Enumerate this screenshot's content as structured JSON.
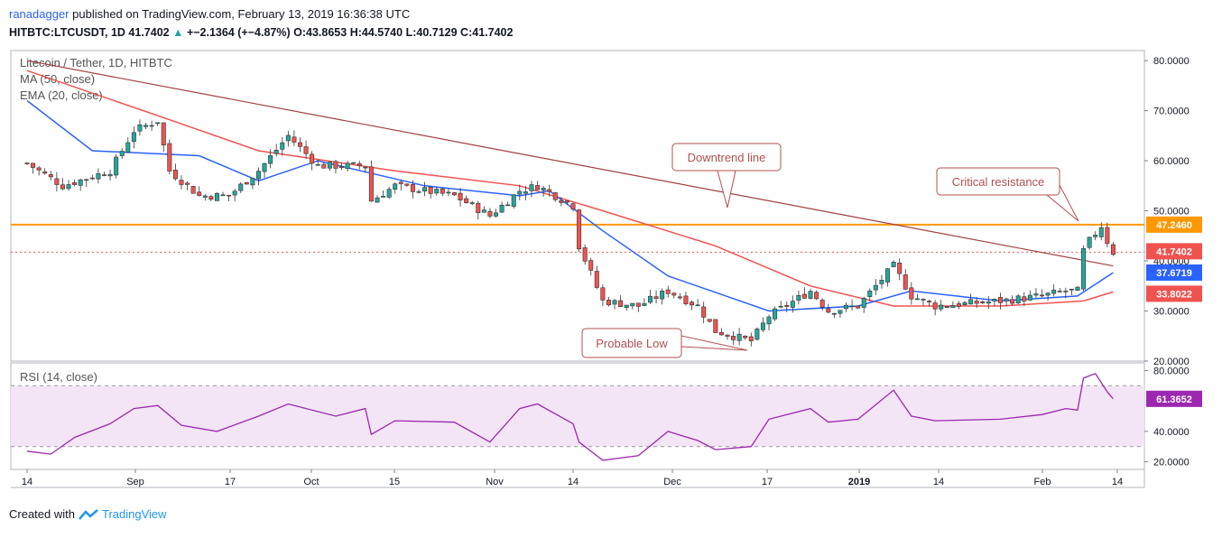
{
  "header": {
    "author": "ranadagger",
    "published": "published on TradingView.com, February 13, 2019 16:36:38 UTC",
    "symbol": "HITBTC:LTCUSDT, 1D",
    "last": "41.7402",
    "change": "+−2.1364 (+−4.87%)",
    "o_label": "O:",
    "o": "43.8653",
    "h_label": "H:",
    "h": "44.5740",
    "l_label": "L:",
    "l": "40.7129",
    "c_label": "C:",
    "c": "41.7402"
  },
  "legend": [
    "Litecoin / Tether, 1D, HITBTC",
    "MA (50, close)",
    "EMA (20, close)"
  ],
  "rsi_legend": "RSI (14, close)",
  "price_axis": [
    "80.0000",
    "70.0000",
    "60.0000",
    "50.0000",
    "40.0000",
    "30.0000",
    "20.0000"
  ],
  "rsi_axis": [
    "80.0000",
    "40.0000",
    "20.0000"
  ],
  "price_tags": [
    {
      "label": "47.2460",
      "value": 47.246,
      "color": "#ff9800"
    },
    {
      "label": "41.7402",
      "value": 41.7402,
      "color": "#ef5350"
    },
    {
      "label": "37.6719",
      "value": 37.6719,
      "color": "#2962ff"
    },
    {
      "label": "33.8022",
      "value": 33.8022,
      "color": "#ef5350"
    }
  ],
  "rsi_tag": {
    "label": "61.3652",
    "value": 61.3652,
    "color": "#9c27b0"
  },
  "time_axis": [
    "14",
    "Sep",
    "17",
    "Oct",
    "15",
    "Nov",
    "14",
    "Dec",
    "17",
    "2019",
    "14",
    "Feb",
    "14"
  ],
  "annotations": {
    "downtrend": "Downtrend line",
    "resistance": "Critical resistance",
    "low": "Probable Low"
  },
  "footer": {
    "created": "Created with",
    "brand": "TradingView"
  },
  "colors": {
    "up": "#26a69a",
    "down": "#ef5350",
    "ma": "#ef5350",
    "ema": "#2962ff",
    "resistance": "#ff9800",
    "trendline": "#a04040",
    "rsi": "#9c27b0",
    "rsi_band": "#f3e5f5",
    "annotation_border": "#b05050",
    "annotation_text": "#b05050"
  },
  "chart_data": {
    "type": "candlestick",
    "title": "Litecoin / Tether, 1D, HITBTC",
    "symbol": "HITBTC:LTCUSDT",
    "ylim": [
      20,
      82
    ],
    "resistance_level": 47.246,
    "rsi_band": [
      30,
      70
    ],
    "price_series": [
      {
        "date": "08-14",
        "close": 59.5
      },
      {
        "date": "08-20",
        "close": 55
      },
      {
        "date": "08-28",
        "close": 58
      },
      {
        "date": "09-01",
        "close": 66
      },
      {
        "date": "09-05",
        "close": 68
      },
      {
        "date": "09-07",
        "close": 58
      },
      {
        "date": "09-12",
        "close": 53
      },
      {
        "date": "09-17",
        "close": 53
      },
      {
        "date": "09-22",
        "close": 58
      },
      {
        "date": "09-27",
        "close": 65
      },
      {
        "date": "10-02",
        "close": 59
      },
      {
        "date": "10-10",
        "close": 59
      },
      {
        "date": "10-11",
        "close": 52
      },
      {
        "date": "10-15",
        "close": 55
      },
      {
        "date": "10-25",
        "close": 53
      },
      {
        "date": "10-31",
        "close": 49
      },
      {
        "date": "11-05",
        "close": 54
      },
      {
        "date": "11-08",
        "close": 55
      },
      {
        "date": "11-14",
        "close": 51
      },
      {
        "date": "11-15",
        "close": 43
      },
      {
        "date": "11-19",
        "close": 32
      },
      {
        "date": "11-25",
        "close": 31
      },
      {
        "date": "11-30",
        "close": 34
      },
      {
        "date": "12-05",
        "close": 31
      },
      {
        "date": "12-08",
        "close": 26
      },
      {
        "date": "12-14",
        "close": 24
      },
      {
        "date": "12-17",
        "close": 29
      },
      {
        "date": "12-24",
        "close": 34
      },
      {
        "date": "12-27",
        "close": 30
      },
      {
        "date": "01-01",
        "close": 31
      },
      {
        "date": "01-07",
        "close": 39
      },
      {
        "date": "01-10",
        "close": 33
      },
      {
        "date": "01-14",
        "close": 31
      },
      {
        "date": "01-25",
        "close": 32
      },
      {
        "date": "02-01",
        "close": 33
      },
      {
        "date": "02-05",
        "close": 34
      },
      {
        "date": "02-07",
        "close": 34
      },
      {
        "date": "02-08",
        "close": 42
      },
      {
        "date": "02-09",
        "close": 44
      },
      {
        "date": "02-11",
        "close": 47
      },
      {
        "date": "02-12",
        "close": 43.87
      },
      {
        "date": "02-13",
        "close": 41.74
      }
    ],
    "ma50": [
      {
        "date": "08-14",
        "value": 78
      },
      {
        "date": "09-05",
        "value": 69
      },
      {
        "date": "09-22",
        "value": 62
      },
      {
        "date": "10-15",
        "value": 58
      },
      {
        "date": "11-05",
        "value": 55
      },
      {
        "date": "11-19",
        "value": 50
      },
      {
        "date": "12-08",
        "value": 43
      },
      {
        "date": "12-24",
        "value": 35
      },
      {
        "date": "01-07",
        "value": 31
      },
      {
        "date": "01-25",
        "value": 31
      },
      {
        "date": "02-08",
        "value": 32
      },
      {
        "date": "02-13",
        "value": 33.8
      }
    ],
    "ema20": [
      {
        "date": "08-14",
        "value": 72
      },
      {
        "date": "08-25",
        "value": 62
      },
      {
        "date": "09-12",
        "value": 61
      },
      {
        "date": "09-22",
        "value": 56
      },
      {
        "date": "10-02",
        "value": 60
      },
      {
        "date": "10-20",
        "value": 55
      },
      {
        "date": "11-05",
        "value": 53
      },
      {
        "date": "11-10",
        "value": 54
      },
      {
        "date": "11-19",
        "value": 46
      },
      {
        "date": "11-30",
        "value": 37
      },
      {
        "date": "12-17",
        "value": 30
      },
      {
        "date": "01-01",
        "value": 31
      },
      {
        "date": "01-10",
        "value": 34
      },
      {
        "date": "01-25",
        "value": 32
      },
      {
        "date": "02-07",
        "value": 33
      },
      {
        "date": "02-13",
        "value": 37.67
      }
    ],
    "trendline": [
      {
        "date": "08-14",
        "value": 80
      },
      {
        "date": "02-13",
        "value": 39
      }
    ],
    "rsi": [
      {
        "date": "08-14",
        "value": 27
      },
      {
        "date": "08-18",
        "value": 25
      },
      {
        "date": "08-22",
        "value": 36
      },
      {
        "date": "08-28",
        "value": 45
      },
      {
        "date": "09-01",
        "value": 55
      },
      {
        "date": "09-05",
        "value": 57
      },
      {
        "date": "09-09",
        "value": 44
      },
      {
        "date": "09-15",
        "value": 40
      },
      {
        "date": "09-22",
        "value": 50
      },
      {
        "date": "09-27",
        "value": 58
      },
      {
        "date": "10-05",
        "value": 50
      },
      {
        "date": "10-10",
        "value": 55
      },
      {
        "date": "10-11",
        "value": 38
      },
      {
        "date": "10-15",
        "value": 47
      },
      {
        "date": "10-25",
        "value": 46
      },
      {
        "date": "10-31",
        "value": 33
      },
      {
        "date": "11-05",
        "value": 55
      },
      {
        "date": "11-08",
        "value": 58
      },
      {
        "date": "11-14",
        "value": 45
      },
      {
        "date": "11-15",
        "value": 33
      },
      {
        "date": "11-19",
        "value": 21
      },
      {
        "date": "11-25",
        "value": 24
      },
      {
        "date": "11-30",
        "value": 40
      },
      {
        "date": "12-05",
        "value": 34
      },
      {
        "date": "12-08",
        "value": 28
      },
      {
        "date": "12-14",
        "value": 30
      },
      {
        "date": "12-17",
        "value": 48
      },
      {
        "date": "12-24",
        "value": 55
      },
      {
        "date": "12-27",
        "value": 46
      },
      {
        "date": "01-01",
        "value": 48
      },
      {
        "date": "01-07",
        "value": 67
      },
      {
        "date": "01-10",
        "value": 50
      },
      {
        "date": "01-14",
        "value": 47
      },
      {
        "date": "01-25",
        "value": 48
      },
      {
        "date": "02-01",
        "value": 51
      },
      {
        "date": "02-05",
        "value": 55
      },
      {
        "date": "02-07",
        "value": 54
      },
      {
        "date": "02-08",
        "value": 75
      },
      {
        "date": "02-10",
        "value": 78
      },
      {
        "date": "02-12",
        "value": 66
      },
      {
        "date": "02-13",
        "value": 61.37
      }
    ]
  }
}
